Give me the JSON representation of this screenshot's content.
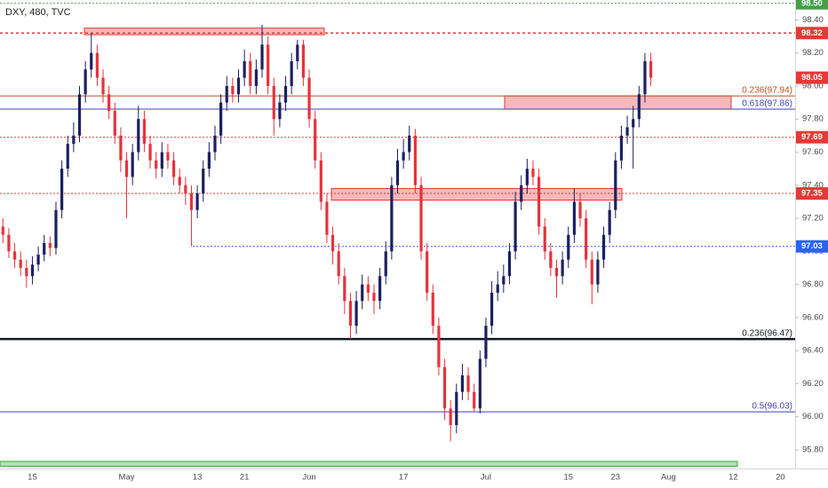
{
  "chart_data": {
    "type": "candlestick",
    "title": "DXY, 480, TVC",
    "up_color": "#1c2060",
    "down_color": "#e5333b",
    "ylim": [
      95.687,
      98.52
    ],
    "yticks": [
      {
        "value": 95.8,
        "label": "95.80"
      },
      {
        "value": 96.0,
        "label": "96.00"
      },
      {
        "value": 96.2,
        "label": "96.20"
      },
      {
        "value": 96.4,
        "label": "96.40"
      },
      {
        "value": 96.6,
        "label": "96.60"
      },
      {
        "value": 96.8,
        "label": "96.80"
      },
      {
        "value": 97.0,
        "label": "97.00"
      },
      {
        "value": 97.2,
        "label": "97.20"
      },
      {
        "value": 97.4,
        "label": "97.40"
      },
      {
        "value": 97.6,
        "label": "97.60"
      },
      {
        "value": 97.8,
        "label": "97.80"
      },
      {
        "value": 98.0,
        "label": "98.00"
      },
      {
        "value": 98.2,
        "label": "98.20"
      },
      {
        "value": 98.4,
        "label": "98.40"
      }
    ],
    "categories": [
      null,
      null,
      null,
      null,
      null,
      "15",
      null,
      null,
      null,
      null,
      null,
      null,
      null,
      null,
      null,
      null,
      null,
      null,
      null,
      null,
      null,
      "May",
      null,
      null,
      null,
      null,
      null,
      null,
      null,
      null,
      null,
      null,
      null,
      "13",
      null,
      null,
      null,
      null,
      null,
      null,
      null,
      "21",
      null,
      null,
      null,
      null,
      null,
      null,
      null,
      null,
      null,
      null,
      "Jun",
      null,
      null,
      null,
      null,
      null,
      null,
      null,
      null,
      null,
      null,
      null,
      null,
      null,
      null,
      null,
      "17",
      null,
      null,
      null,
      null,
      null,
      null,
      null,
      null,
      null,
      null,
      null,
      null,
      null,
      "Jul",
      null,
      null,
      null,
      null,
      null,
      null,
      null,
      null,
      null,
      null,
      null,
      null,
      null,
      "15",
      null,
      null,
      null,
      null,
      null,
      null,
      null,
      "23",
      null,
      null,
      null,
      null,
      null,
      null,
      null,
      null,
      "Aug",
      null,
      null,
      null,
      null,
      null,
      null,
      null,
      null,
      null,
      null,
      "12",
      null,
      null,
      null,
      null,
      null,
      null,
      null,
      "20",
      null,
      null
    ],
    "open": [
      97.15,
      97.1,
      97.0,
      96.95,
      96.9,
      96.85,
      96.92,
      96.98,
      97.05,
      97.02,
      97.25,
      97.5,
      97.65,
      97.7,
      97.95,
      98.1,
      98.2,
      98.05,
      97.95,
      97.85,
      97.7,
      97.55,
      97.45,
      97.6,
      97.8,
      97.65,
      97.55,
      97.5,
      97.6,
      97.55,
      97.45,
      97.4,
      97.35,
      97.25,
      97.35,
      97.5,
      97.6,
      97.7,
      97.9,
      98.0,
      97.95,
      98.05,
      98.15,
      98.0,
      98.1,
      98.25,
      98.0,
      97.8,
      97.9,
      98.0,
      98.15,
      98.25,
      98.05,
      97.8,
      97.55,
      97.3,
      97.1,
      97.0,
      96.85,
      96.7,
      96.55,
      96.7,
      96.8,
      96.75,
      96.7,
      96.85,
      97.0,
      97.4,
      97.55,
      97.6,
      97.7,
      97.4,
      97.0,
      96.75,
      96.55,
      96.3,
      96.05,
      95.95,
      96.15,
      96.25,
      96.15,
      96.05,
      96.35,
      96.55,
      96.75,
      96.8,
      96.85,
      97.0,
      97.3,
      97.4,
      97.5,
      97.45,
      97.15,
      97.0,
      96.9,
      96.85,
      96.95,
      97.1,
      97.3,
      97.2,
      96.95,
      96.8,
      96.95,
      97.1,
      97.25,
      97.55,
      97.7,
      97.75,
      97.8,
      97.95,
      98.15,
      null,
      null,
      null,
      null,
      null,
      null,
      null,
      null,
      null,
      null,
      null,
      null,
      null,
      null,
      null,
      null,
      null,
      null,
      null,
      null,
      null,
      null,
      null,
      null
    ],
    "high": [
      97.2,
      97.14,
      97.05,
      97.0,
      96.95,
      96.97,
      97.03,
      97.1,
      97.09,
      97.3,
      97.55,
      97.7,
      97.78,
      98.0,
      98.15,
      98.32,
      98.25,
      98.1,
      98.0,
      97.9,
      97.75,
      97.6,
      97.65,
      97.88,
      97.85,
      97.7,
      97.6,
      97.66,
      97.65,
      97.6,
      97.5,
      97.45,
      97.4,
      97.4,
      97.55,
      97.66,
      97.76,
      97.95,
      98.06,
      98.05,
      98.1,
      98.22,
      98.2,
      98.16,
      98.37,
      98.3,
      98.05,
      97.95,
      98.06,
      98.2,
      98.28,
      98.28,
      98.1,
      97.85,
      97.6,
      97.35,
      97.15,
      97.05,
      96.9,
      96.75,
      96.76,
      96.86,
      96.85,
      96.8,
      96.9,
      97.06,
      97.45,
      97.62,
      97.68,
      97.76,
      97.74,
      97.45,
      97.05,
      96.8,
      96.6,
      96.35,
      96.1,
      96.2,
      96.32,
      96.3,
      96.2,
      96.4,
      96.6,
      96.82,
      96.88,
      96.92,
      97.05,
      97.36,
      97.46,
      97.56,
      97.55,
      97.5,
      97.2,
      97.05,
      96.95,
      97.0,
      97.15,
      97.38,
      97.35,
      97.25,
      97.0,
      97.0,
      97.15,
      97.3,
      97.6,
      97.76,
      97.82,
      97.88,
      98.0,
      98.2,
      98.2,
      null,
      null,
      null,
      null,
      null,
      null,
      null,
      null,
      null,
      null,
      null,
      null,
      null,
      null,
      null,
      null,
      null,
      null,
      null,
      null,
      null,
      null,
      null,
      null
    ],
    "low": [
      97.05,
      96.96,
      96.9,
      96.85,
      96.78,
      96.8,
      96.88,
      96.94,
      96.97,
      96.98,
      97.2,
      97.45,
      97.6,
      97.66,
      97.9,
      98.05,
      98.0,
      97.9,
      97.8,
      97.65,
      97.48,
      97.2,
      97.4,
      97.55,
      97.6,
      97.5,
      97.44,
      97.45,
      97.5,
      97.4,
      97.35,
      97.28,
      97.03,
      97.2,
      97.3,
      97.45,
      97.55,
      97.65,
      97.85,
      97.9,
      97.9,
      98.0,
      97.95,
      97.95,
      98.05,
      97.95,
      97.7,
      97.75,
      97.85,
      97.95,
      98.1,
      98.0,
      97.75,
      97.5,
      97.25,
      97.05,
      96.92,
      96.8,
      96.62,
      96.47,
      96.5,
      96.65,
      96.7,
      96.62,
      96.65,
      96.8,
      96.95,
      97.35,
      97.5,
      97.55,
      97.35,
      96.95,
      96.7,
      96.5,
      96.25,
      95.98,
      95.85,
      95.9,
      96.1,
      96.1,
      96.03,
      96.02,
      96.3,
      96.5,
      96.7,
      96.75,
      96.8,
      96.95,
      97.25,
      97.35,
      97.4,
      97.1,
      96.95,
      96.85,
      96.72,
      96.8,
      96.9,
      97.05,
      97.15,
      96.9,
      96.68,
      96.75,
      96.9,
      97.05,
      97.2,
      97.5,
      97.65,
      97.5,
      97.75,
      97.9,
      98.0,
      null,
      null,
      null,
      null,
      null,
      null,
      null,
      null,
      null,
      null,
      null,
      null,
      null,
      null,
      null,
      null,
      null,
      null,
      null,
      null,
      null,
      null,
      null,
      null
    ],
    "close": [
      97.1,
      97.0,
      96.95,
      96.9,
      96.85,
      96.92,
      96.98,
      97.05,
      97.02,
      97.25,
      97.5,
      97.65,
      97.7,
      97.95,
      98.1,
      98.2,
      98.05,
      97.95,
      97.85,
      97.7,
      97.55,
      97.45,
      97.6,
      97.8,
      97.65,
      97.55,
      97.5,
      97.6,
      97.55,
      97.45,
      97.4,
      97.35,
      97.25,
      97.35,
      97.5,
      97.6,
      97.7,
      97.9,
      98.0,
      97.95,
      98.05,
      98.15,
      98.0,
      98.1,
      98.25,
      98.0,
      97.8,
      97.9,
      98.0,
      98.15,
      98.25,
      98.05,
      97.8,
      97.55,
      97.3,
      97.1,
      97.0,
      96.85,
      96.7,
      96.55,
      96.7,
      96.8,
      96.75,
      96.7,
      96.85,
      97.0,
      97.4,
      97.55,
      97.6,
      97.7,
      97.4,
      97.0,
      96.75,
      96.55,
      96.3,
      96.05,
      95.95,
      96.15,
      96.25,
      96.15,
      96.05,
      96.35,
      96.55,
      96.75,
      96.8,
      96.85,
      97.0,
      97.3,
      97.4,
      97.5,
      97.45,
      97.15,
      97.0,
      96.9,
      96.85,
      96.95,
      97.1,
      97.3,
      97.2,
      96.95,
      96.8,
      96.95,
      97.1,
      97.25,
      97.55,
      97.7,
      97.75,
      97.8,
      97.95,
      98.15,
      98.05,
      null,
      null,
      null,
      null,
      null,
      null,
      null,
      null,
      null,
      null,
      null,
      null,
      null,
      null,
      null,
      null,
      null,
      null,
      null,
      null,
      null,
      null,
      null,
      null
    ],
    "levels": [
      {
        "value": 98.5,
        "label": "98.50",
        "color": "#43a047",
        "style": "dotted",
        "kind": "badge"
      },
      {
        "value": 98.32,
        "label": "98.32",
        "color": "#e53935",
        "style": "dashed",
        "kind": "badge"
      },
      {
        "value": 98.05,
        "label": "98.05",
        "color": "#e53935",
        "style": "none",
        "kind": "badge"
      },
      {
        "value": 97.94,
        "label": "0.236(97.94)",
        "color": "#bf4f1d",
        "style": "solid",
        "kind": "fib"
      },
      {
        "value": 97.86,
        "label": "0.618(97.86)",
        "color": "#3f3fbf",
        "style": "solid",
        "kind": "fib"
      },
      {
        "value": 97.69,
        "label": "97.69",
        "color": "#e53935",
        "style": "dotted",
        "kind": "badge"
      },
      {
        "value": 97.35,
        "label": "97.35",
        "color": "#e53935",
        "style": "dotted",
        "kind": "badge"
      },
      {
        "value": 97.03,
        "label": "97.03",
        "color": "#2962ff",
        "style": "dotted",
        "kind": "badge"
      },
      {
        "value": 96.47,
        "label": "0.236(96.47)",
        "color": "#131722",
        "style": "thick",
        "kind": "fib"
      },
      {
        "value": 96.03,
        "label": "0.5(96.03)",
        "color": "#3f3fbf",
        "style": "solid",
        "kind": "fib"
      }
    ],
    "zones": [
      {
        "top": 98.35,
        "bottom": 98.31,
        "color": "#f4a0a3",
        "edge": "#e53935"
      },
      {
        "top": 97.94,
        "bottom": 97.86,
        "color": "#f4a0a3",
        "edge": "#e53935"
      },
      {
        "top": 97.38,
        "bottom": 97.31,
        "color": "#f4a0a3",
        "edge": "#e53935"
      },
      {
        "top": 95.73,
        "bottom": 95.7,
        "color": "#8be08e",
        "edge": "#43a047"
      }
    ]
  }
}
